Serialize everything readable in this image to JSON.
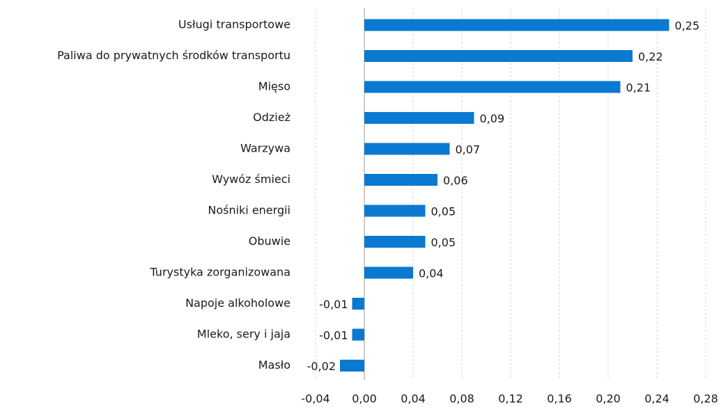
{
  "chart_data": {
    "type": "bar",
    "orientation": "horizontal",
    "categories": [
      "Usługi transportowe",
      "Paliwa do prywatnych środków transportu",
      "Mięso",
      "Odzież",
      "Warzywa",
      "Wywóz śmieci",
      "Nośniki energii",
      "Obuwie",
      "Turystyka zorganizowana",
      "Napoje alkoholowe",
      "Mleko, sery i jaja",
      "Masło"
    ],
    "values": [
      0.25,
      0.22,
      0.21,
      0.09,
      0.07,
      0.06,
      0.05,
      0.05,
      0.04,
      -0.01,
      -0.01,
      -0.02
    ],
    "value_labels": [
      "0,25",
      "0,22",
      "0,21",
      "0,09",
      "0,07",
      "0,06",
      "0,05",
      "0,05",
      "0,04",
      "-0,01",
      "-0,01",
      "-0,02"
    ],
    "color": "#0a79d0",
    "xlim": [
      -0.04,
      0.28
    ],
    "xticks": [
      {
        "value": -0.04,
        "label": "-0,04"
      },
      {
        "value": 0,
        "label": "0,00"
      },
      {
        "value": 0.04,
        "label": "0,04"
      },
      {
        "value": 0.08,
        "label": "0,08"
      },
      {
        "value": 0.12,
        "label": "0,12"
      },
      {
        "value": 0.16,
        "label": "0,16"
      },
      {
        "value": 0.2,
        "label": "0,20"
      },
      {
        "value": 0.24,
        "label": "0,24"
      },
      {
        "value": 0.28,
        "label": "0,28"
      }
    ],
    "grid": true
  }
}
